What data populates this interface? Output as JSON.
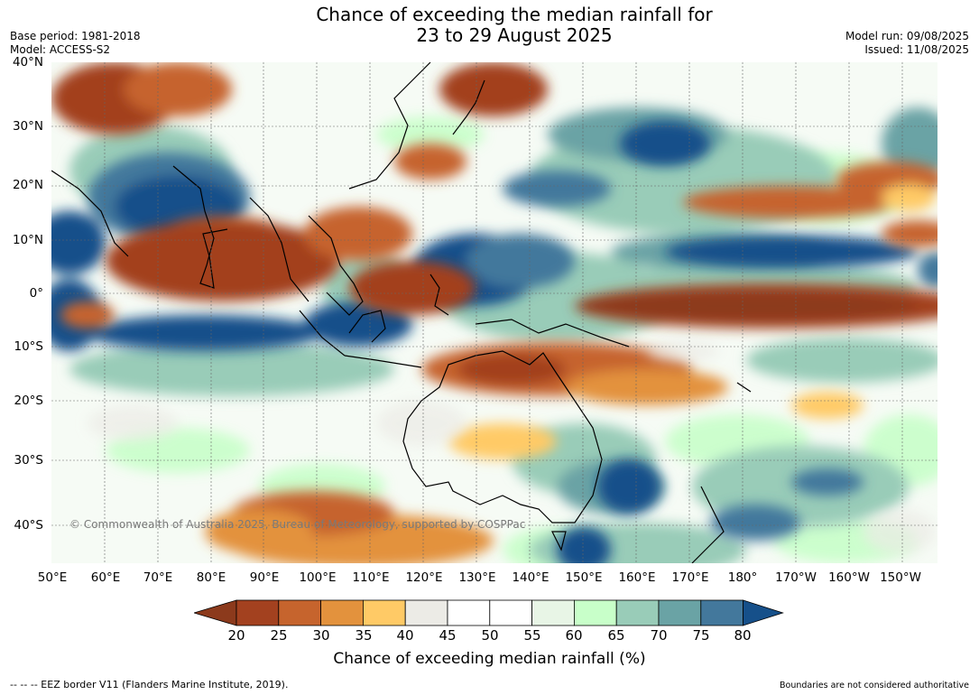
{
  "title": {
    "line1": "Chance of exceeding the median rainfall for",
    "line2": "23 to 29 August 2025"
  },
  "meta": {
    "base_period": "Base period: 1981-2018",
    "model": "Model: ACCESS-S2",
    "model_run": "Model run: 09/08/2025",
    "issued": "Issued: 11/08/2025"
  },
  "map": {
    "lat_labels": [
      "40°N",
      "30°N",
      "20°N",
      "10°N",
      "0°",
      "10°S",
      "20°S",
      "30°S",
      "40°S"
    ],
    "lon_labels": [
      "50°E",
      "60°E",
      "70°E",
      "80°E",
      "90°E",
      "100°E",
      "110°E",
      "120°E",
      "130°E",
      "140°E",
      "150°E",
      "160°E",
      "170°E",
      "180°",
      "170°W",
      "160°W",
      "150°W"
    ],
    "copyright": "© Commonwealth of Australia 2025, Bureau of Meteorology, supported by COSPPac"
  },
  "colorbar": {
    "ticks": [
      "20",
      "25",
      "30",
      "35",
      "40",
      "45",
      "50",
      "55",
      "60",
      "65",
      "70",
      "75",
      "80"
    ],
    "colors": [
      "#a3411f",
      "#c6642d",
      "#e3923d",
      "#ffca66",
      "#ecebe6",
      "#ffffff",
      "#ffffff",
      "#e8f5e6",
      "#c8ffc9",
      "#99ccb8",
      "#6aa3a5",
      "#43789c"
    ],
    "low_color": "#8c3a1c",
    "high_color": "#16508a",
    "label": "Chance of exceeding median rainfall (%)"
  },
  "footer": {
    "eez_note": "--  --  -- EEZ border V11 (Flanders Marine Institute, 2019).",
    "boundaries_note": "Boundaries are not considered authoritative"
  }
}
